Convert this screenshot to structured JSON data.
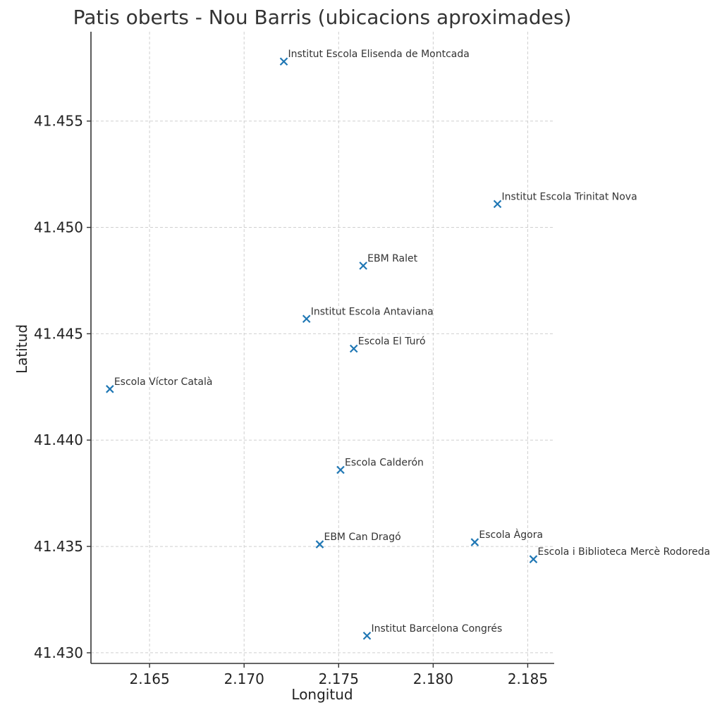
{
  "chart_data": {
    "type": "scatter",
    "title": "Patis oberts - Nou Barris (ubicacions aproximades)",
    "xlabel": "Longitud",
    "ylabel": "Latitud",
    "xlim": [
      2.1619,
      2.1864
    ],
    "ylim": [
      41.4295,
      41.4592
    ],
    "xticks": [
      "2.165",
      "2.170",
      "2.175",
      "2.180",
      "2.185"
    ],
    "yticks": [
      "41.430",
      "41.435",
      "41.440",
      "41.445",
      "41.450",
      "41.455"
    ],
    "grid": true,
    "marker": "x",
    "color": "#1f77b4",
    "points": [
      {
        "label": "Institut Escola Elisenda de Montcada",
        "x": 2.1721,
        "y": 41.4578
      },
      {
        "label": "Institut Escola Trinitat Nova",
        "x": 2.1834,
        "y": 41.4511
      },
      {
        "label": "EBM Ralet",
        "x": 2.1763,
        "y": 41.4482
      },
      {
        "label": "Institut Escola Antaviana",
        "x": 2.1733,
        "y": 41.4457
      },
      {
        "label": "Escola El Turó",
        "x": 2.1758,
        "y": 41.4443
      },
      {
        "label": "Escola Víctor Català",
        "x": 2.1629,
        "y": 41.4424
      },
      {
        "label": "Escola Calderón",
        "x": 2.1751,
        "y": 41.4386
      },
      {
        "label": "EBM Can Dragó",
        "x": 2.174,
        "y": 41.4351
      },
      {
        "label": "Escola Àgora",
        "x": 2.1822,
        "y": 41.4352
      },
      {
        "label": "Escola i Biblioteca Mercè Rodoreda",
        "x": 2.1853,
        "y": 41.4344
      },
      {
        "label": "Institut Barcelona Congrés",
        "x": 2.1765,
        "y": 41.4308
      }
    ]
  }
}
